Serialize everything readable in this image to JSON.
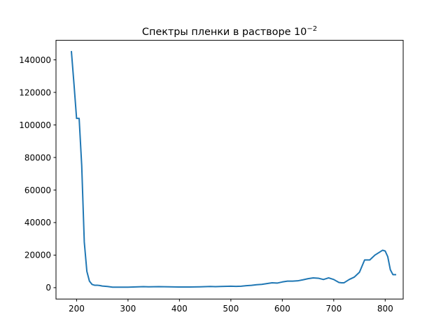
{
  "chart_data": {
    "type": "line",
    "title": "Спектры пленки в растворе 10",
    "title_superscript": "−2",
    "xlabel": "",
    "ylabel": "",
    "xlim": [
      160,
      835
    ],
    "ylim": [
      -7000,
      152000
    ],
    "x_ticks": [
      {
        "value": 200,
        "label": "200"
      },
      {
        "value": 300,
        "label": "300"
      },
      {
        "value": 400,
        "label": "400"
      },
      {
        "value": 500,
        "label": "500"
      },
      {
        "value": 600,
        "label": "600"
      },
      {
        "value": 700,
        "label": "700"
      },
      {
        "value": 800,
        "label": "800"
      }
    ],
    "y_ticks": [
      {
        "value": 0,
        "label": "0"
      },
      {
        "value": 20000,
        "label": "20000"
      },
      {
        "value": 40000,
        "label": "40000"
      },
      {
        "value": 60000,
        "label": "60000"
      },
      {
        "value": 80000,
        "label": "80000"
      },
      {
        "value": 100000,
        "label": "100000"
      },
      {
        "value": 120000,
        "label": "120000"
      },
      {
        "value": 140000,
        "label": "140000"
      }
    ],
    "grid": false,
    "legend": "none",
    "series": [
      {
        "color": "#1f77b4",
        "x": [
          190,
          195,
          200,
          205,
          210,
          215,
          220,
          225,
          230,
          235,
          240,
          245,
          250,
          260,
          270,
          280,
          300,
          320,
          330,
          340,
          360,
          380,
          400,
          420,
          440,
          460,
          470,
          480,
          500,
          510,
          520,
          530,
          540,
          550,
          560,
          570,
          580,
          590,
          600,
          610,
          620,
          630,
          640,
          650,
          660,
          670,
          680,
          690,
          700,
          710,
          715,
          720,
          730,
          740,
          750,
          760,
          770,
          780,
          790,
          795,
          800,
          805,
          810,
          815,
          820
        ],
        "y": [
          145000,
          125000,
          104000,
          104000,
          75000,
          28000,
          10000,
          4000,
          2000,
          1500,
          1500,
          1300,
          1000,
          700,
          300,
          300,
          300,
          500,
          600,
          500,
          600,
          500,
          400,
          400,
          500,
          700,
          600,
          700,
          900,
          800,
          900,
          1200,
          1400,
          1800,
          2000,
          2500,
          3000,
          2800,
          3500,
          4000,
          4000,
          4200,
          4800,
          5500,
          6000,
          5800,
          5000,
          6000,
          5000,
          3200,
          3000,
          3000,
          5000,
          6500,
          9500,
          17000,
          17000,
          20000,
          22000,
          23000,
          22500,
          19000,
          11000,
          8000,
          8000
        ]
      }
    ]
  }
}
